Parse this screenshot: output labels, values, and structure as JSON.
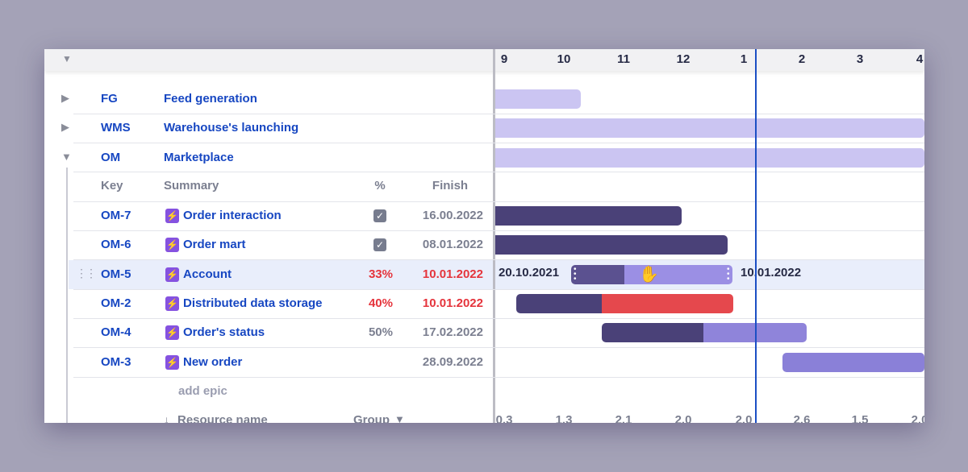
{
  "timeline": {
    "months": [
      "9",
      "10",
      "11",
      "12",
      "1",
      "2",
      "3",
      "4"
    ],
    "bottom_values": [
      "0.3",
      "1.3",
      "2.1",
      "2.0",
      "2.0",
      "2.6",
      "1.5",
      "2.0"
    ],
    "drag_start": "20.10.2021",
    "drag_end": "10.01.2022"
  },
  "groups": [
    {
      "key": "FG",
      "summary": "Feed generation"
    },
    {
      "key": "WMS",
      "summary": "Warehouse's launching"
    },
    {
      "key": "OM",
      "summary": "Marketplace"
    }
  ],
  "table": {
    "columns": [
      "Key",
      "Summary",
      "%",
      "Finish"
    ],
    "rows": [
      {
        "key": "OM-7",
        "summary": "Order interaction",
        "done": true,
        "finish": "16.00.2022"
      },
      {
        "key": "OM-6",
        "summary": "Order mart",
        "done": true,
        "finish": "08.01.2022"
      },
      {
        "key": "OM-5",
        "summary": "Account",
        "percent": "33%",
        "finish": "10.01.2022",
        "overdue": true
      },
      {
        "key": "OM-2",
        "summary": "Distributed data storage",
        "percent": "40%",
        "finish": "10.01.2022",
        "overdue": true
      },
      {
        "key": "OM-4",
        "summary": "Order's status",
        "percent": "50%",
        "finish": "17.02.2022"
      },
      {
        "key": "OM-3",
        "summary": "New order",
        "finish": "28.09.2022"
      }
    ]
  },
  "add_epic": "add epic",
  "footer": {
    "resource_name": "Resource name",
    "group": "Group"
  }
}
